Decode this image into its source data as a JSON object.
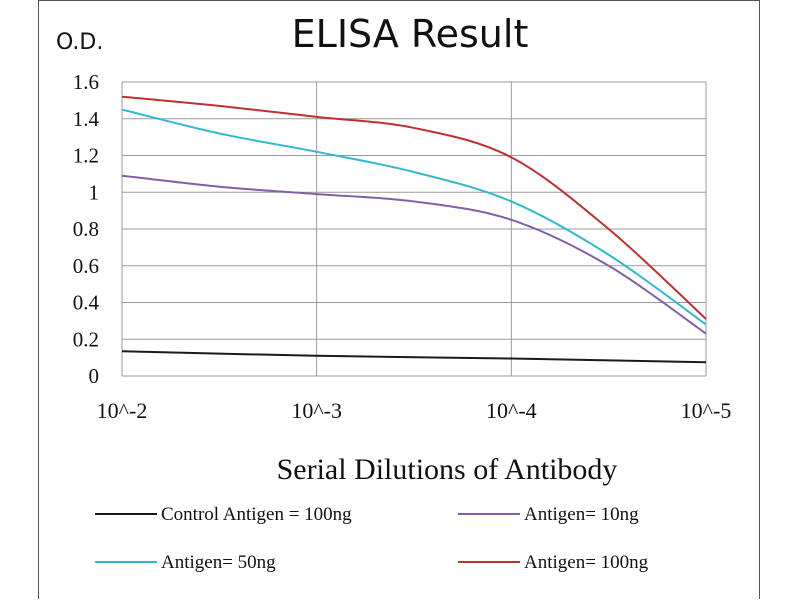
{
  "chart_data": {
    "type": "line",
    "title": "ELISA Result",
    "ylabel": "O.D.",
    "xlabel": "Serial Dilutions  of Antibody",
    "categories": [
      "10^-2",
      "10^-3",
      "10^-4",
      "10^-5"
    ],
    "ylim": [
      0,
      1.6
    ],
    "yticks": [
      "0",
      "0.2",
      "0.4",
      "0.6",
      "0.8",
      "1",
      "1.2",
      "1.4",
      "1.6"
    ],
    "grid": true,
    "legend_position": "bottom",
    "series": [
      {
        "name": "Control Antigen = 100ng",
        "color": "#1a1a1a",
        "points": [
          [
            0,
            0.135
          ],
          [
            1,
            0.11
          ],
          [
            2,
            0.095
          ],
          [
            3,
            0.075
          ]
        ]
      },
      {
        "name": "Antigen= 10ng",
        "color": "#8060a8",
        "points": [
          [
            0,
            1.09
          ],
          [
            0.5,
            1.03
          ],
          [
            1,
            0.99
          ],
          [
            1.5,
            0.95
          ],
          [
            2,
            0.85
          ],
          [
            2.5,
            0.6
          ],
          [
            3,
            0.23
          ]
        ]
      },
      {
        "name": "Antigen= 50ng",
        "color": "#30b8d0",
        "points": [
          [
            0,
            1.45
          ],
          [
            0.5,
            1.32
          ],
          [
            1,
            1.22
          ],
          [
            1.5,
            1.11
          ],
          [
            2,
            0.95
          ],
          [
            2.5,
            0.66
          ],
          [
            3,
            0.28
          ]
        ]
      },
      {
        "name": "Antigen= 100ng",
        "color": "#c03030",
        "points": [
          [
            0,
            1.52
          ],
          [
            0.5,
            1.47
          ],
          [
            1,
            1.41
          ],
          [
            1.5,
            1.35
          ],
          [
            2,
            1.19
          ],
          [
            2.5,
            0.8
          ],
          [
            3,
            0.31
          ]
        ]
      }
    ]
  }
}
